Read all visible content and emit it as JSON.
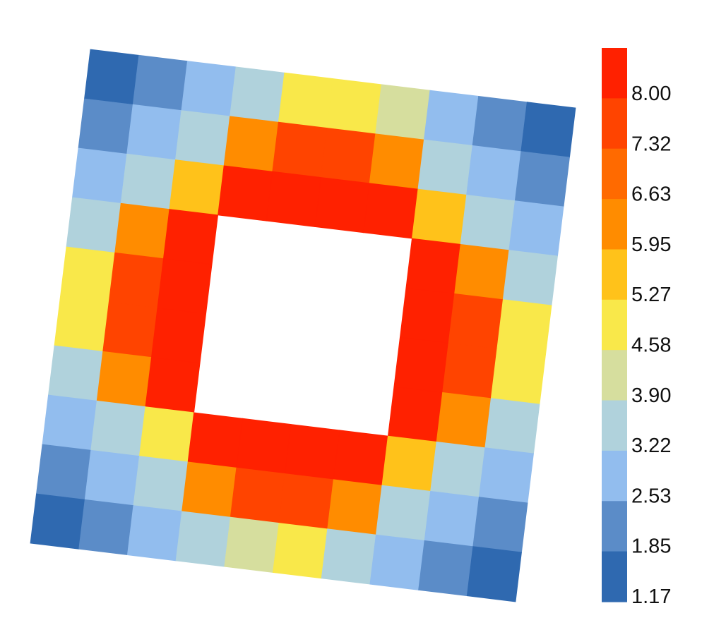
{
  "chart_data": {
    "type": "heatmap",
    "title": "",
    "xlabel": "",
    "ylabel": "",
    "grid": false,
    "rows": 10,
    "cols": 10,
    "hole": {
      "rows": [
        3,
        6
      ],
      "cols": [
        3,
        6
      ]
    },
    "values": [
      [
        1.2,
        1.9,
        2.6,
        3.9,
        4.9,
        4.8,
        4.2,
        2.6,
        1.9,
        1.2
      ],
      [
        1.9,
        2.6,
        3.9,
        6.3,
        7.8,
        7.8,
        6.3,
        3.9,
        2.6,
        1.9
      ],
      [
        2.6,
        3.9,
        5.3,
        8.2,
        8.2,
        8.2,
        8.2,
        5.3,
        3.9,
        2.6
      ],
      [
        3.9,
        6.3,
        8.2,
        null,
        null,
        null,
        null,
        8.2,
        6.3,
        3.9
      ],
      [
        4.8,
        7.7,
        8.2,
        null,
        null,
        null,
        null,
        8.2,
        7.7,
        4.8
      ],
      [
        4.8,
        7.7,
        8.2,
        null,
        null,
        null,
        null,
        8.2,
        7.7,
        4.8
      ],
      [
        3.9,
        6.3,
        8.2,
        null,
        null,
        null,
        null,
        8.2,
        6.3,
        3.9
      ],
      [
        2.6,
        3.9,
        5.0,
        8.2,
        8.2,
        8.2,
        8.2,
        5.3,
        3.9,
        2.6
      ],
      [
        1.9,
        2.6,
        3.9,
        6.3,
        7.7,
        7.7,
        6.3,
        3.9,
        2.6,
        1.9
      ],
      [
        1.2,
        1.9,
        2.6,
        3.5,
        4.2,
        4.7,
        3.5,
        2.6,
        1.9,
        1.2
      ]
    ],
    "colorbar": {
      "min": 1.17,
      "max": 8.69,
      "tick_labels": [
        "8.00",
        "7.32",
        "6.63",
        "5.95",
        "5.27",
        "4.58",
        "3.90",
        "3.22",
        "2.53",
        "1.85",
        "1.17"
      ],
      "colors": [
        "#ff2100",
        "#ff4400",
        "#ff6a00",
        "#ff8c00",
        "#ffc21a",
        "#f9e84a",
        "#d6de9e",
        "#b0d2dc",
        "#92bdee",
        "#5b8cc8",
        "#2f69b0"
      ],
      "placement": "right"
    }
  }
}
